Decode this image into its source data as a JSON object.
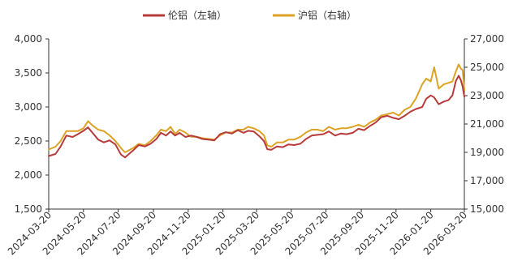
{
  "chart_data": {
    "type": "line",
    "title": "",
    "legend": {
      "placement": "top-center",
      "items": [
        "伦铝（左轴）",
        "沪铝（右轴）"
      ]
    },
    "x_ticks": [
      "2024-03-20",
      "2024-05-20",
      "2024-07-20",
      "2024-09-20",
      "2024-11-20",
      "2025-01-20",
      "2025-03-20",
      "2025-05-20",
      "2025-07-20",
      "2025-09-20",
      "2025-11-20",
      "2026-01-20",
      "2026-03-20"
    ],
    "y_left": {
      "range": [
        1500,
        4000
      ],
      "ticks": [
        1500,
        2000,
        2500,
        3000,
        3500,
        4000
      ],
      "tick_labels": [
        "1,500",
        "2,000",
        "2,500",
        "3,000",
        "3,500",
        "4,000"
      ]
    },
    "y_right": {
      "range": [
        15000,
        27000
      ],
      "ticks": [
        15000,
        17000,
        19000,
        21000,
        23000,
        25000,
        27000
      ],
      "tick_labels": [
        "15,000",
        "17,000",
        "19,000",
        "21,000",
        "23,000",
        "25,000",
        "27,000"
      ]
    },
    "grid": false,
    "colors": {
      "lme": "#b83b3b",
      "shfe": "#dca324"
    },
    "series": [
      {
        "name": "伦铝（左轴）",
        "axis": "left",
        "points": [
          [
            "2024-03-20",
            2280
          ],
          [
            "2024-04-01",
            2310
          ],
          [
            "2024-04-10",
            2420
          ],
          [
            "2024-04-20",
            2580
          ],
          [
            "2024-05-01",
            2560
          ],
          [
            "2024-05-10",
            2600
          ],
          [
            "2024-05-20",
            2650
          ],
          [
            "2024-05-28",
            2700
          ],
          [
            "2024-06-05",
            2620
          ],
          [
            "2024-06-15",
            2520
          ],
          [
            "2024-06-25",
            2480
          ],
          [
            "2024-07-05",
            2510
          ],
          [
            "2024-07-15",
            2450
          ],
          [
            "2024-07-25",
            2300
          ],
          [
            "2024-08-01",
            2260
          ],
          [
            "2024-08-08",
            2310
          ],
          [
            "2024-08-15",
            2360
          ],
          [
            "2024-08-25",
            2440
          ],
          [
            "2024-09-05",
            2420
          ],
          [
            "2024-09-15",
            2460
          ],
          [
            "2024-09-25",
            2530
          ],
          [
            "2024-10-03",
            2620
          ],
          [
            "2024-10-12",
            2580
          ],
          [
            "2024-10-20",
            2640
          ],
          [
            "2024-10-28",
            2580
          ],
          [
            "2024-11-05",
            2620
          ],
          [
            "2024-11-15",
            2560
          ],
          [
            "2024-11-25",
            2580
          ],
          [
            "2024-12-05",
            2560
          ],
          [
            "2024-12-15",
            2530
          ],
          [
            "2024-12-25",
            2520
          ],
          [
            "2025-01-05",
            2510
          ],
          [
            "2025-01-15",
            2600
          ],
          [
            "2025-01-25",
            2630
          ],
          [
            "2025-02-05",
            2610
          ],
          [
            "2025-02-15",
            2660
          ],
          [
            "2025-02-25",
            2620
          ],
          [
            "2025-03-05",
            2650
          ],
          [
            "2025-03-15",
            2640
          ],
          [
            "2025-03-25",
            2570
          ],
          [
            "2025-04-02",
            2500
          ],
          [
            "2025-04-08",
            2380
          ],
          [
            "2025-04-15",
            2370
          ],
          [
            "2025-04-25",
            2420
          ],
          [
            "2025-05-05",
            2410
          ],
          [
            "2025-05-15",
            2450
          ],
          [
            "2025-05-25",
            2440
          ],
          [
            "2025-06-05",
            2460
          ],
          [
            "2025-06-15",
            2530
          ],
          [
            "2025-06-25",
            2580
          ],
          [
            "2025-07-05",
            2590
          ],
          [
            "2025-07-15",
            2600
          ],
          [
            "2025-07-25",
            2640
          ],
          [
            "2025-08-05",
            2580
          ],
          [
            "2025-08-15",
            2610
          ],
          [
            "2025-08-25",
            2600
          ],
          [
            "2025-09-05",
            2620
          ],
          [
            "2025-09-15",
            2680
          ],
          [
            "2025-09-25",
            2660
          ],
          [
            "2025-10-05",
            2720
          ],
          [
            "2025-10-15",
            2770
          ],
          [
            "2025-10-25",
            2850
          ],
          [
            "2025-11-05",
            2870
          ],
          [
            "2025-11-15",
            2840
          ],
          [
            "2025-11-25",
            2820
          ],
          [
            "2025-12-05",
            2870
          ],
          [
            "2025-12-15",
            2930
          ],
          [
            "2025-12-25",
            2970
          ],
          [
            "2026-01-05",
            3000
          ],
          [
            "2026-01-12",
            3120
          ],
          [
            "2026-01-20",
            3170
          ],
          [
            "2026-01-26",
            3140
          ],
          [
            "2026-02-03",
            3040
          ],
          [
            "2026-02-12",
            3080
          ],
          [
            "2026-02-20",
            3100
          ],
          [
            "2026-02-27",
            3170
          ],
          [
            "2026-03-05",
            3380
          ],
          [
            "2026-03-10",
            3460
          ],
          [
            "2026-03-14",
            3390
          ],
          [
            "2026-03-17",
            3300
          ],
          [
            "2026-03-20",
            3150
          ]
        ]
      },
      {
        "name": "沪铝（右轴）",
        "axis": "right",
        "points": [
          [
            "2024-03-20",
            19200
          ],
          [
            "2024-04-01",
            19400
          ],
          [
            "2024-04-10",
            19800
          ],
          [
            "2024-04-20",
            20500
          ],
          [
            "2024-05-01",
            20500
          ],
          [
            "2024-05-10",
            20500
          ],
          [
            "2024-05-20",
            20700
          ],
          [
            "2024-05-28",
            21200
          ],
          [
            "2024-06-05",
            20900
          ],
          [
            "2024-06-15",
            20600
          ],
          [
            "2024-06-25",
            20500
          ],
          [
            "2024-07-05",
            20200
          ],
          [
            "2024-07-15",
            19800
          ],
          [
            "2024-07-25",
            19300
          ],
          [
            "2024-08-01",
            19000
          ],
          [
            "2024-08-08",
            19150
          ],
          [
            "2024-08-15",
            19300
          ],
          [
            "2024-08-25",
            19600
          ],
          [
            "2024-09-05",
            19500
          ],
          [
            "2024-09-15",
            19800
          ],
          [
            "2024-09-25",
            20200
          ],
          [
            "2024-10-03",
            20600
          ],
          [
            "2024-10-12",
            20500
          ],
          [
            "2024-10-20",
            20800
          ],
          [
            "2024-10-28",
            20300
          ],
          [
            "2024-11-05",
            20600
          ],
          [
            "2024-11-15",
            20400
          ],
          [
            "2024-11-25",
            20100
          ],
          [
            "2024-12-05",
            20100
          ],
          [
            "2024-12-15",
            20000
          ],
          [
            "2024-12-25",
            19950
          ],
          [
            "2025-01-05",
            19900
          ],
          [
            "2025-01-15",
            20200
          ],
          [
            "2025-01-25",
            20400
          ],
          [
            "2025-02-05",
            20400
          ],
          [
            "2025-02-15",
            20600
          ],
          [
            "2025-02-25",
            20600
          ],
          [
            "2025-03-05",
            20800
          ],
          [
            "2025-03-15",
            20700
          ],
          [
            "2025-03-25",
            20500
          ],
          [
            "2025-04-02",
            20200
          ],
          [
            "2025-04-08",
            19500
          ],
          [
            "2025-04-15",
            19400
          ],
          [
            "2025-04-25",
            19700
          ],
          [
            "2025-05-05",
            19700
          ],
          [
            "2025-05-15",
            19900
          ],
          [
            "2025-05-25",
            19900
          ],
          [
            "2025-06-05",
            20100
          ],
          [
            "2025-06-15",
            20400
          ],
          [
            "2025-06-25",
            20600
          ],
          [
            "2025-07-05",
            20600
          ],
          [
            "2025-07-15",
            20500
          ],
          [
            "2025-07-25",
            20800
          ],
          [
            "2025-08-05",
            20600
          ],
          [
            "2025-08-15",
            20700
          ],
          [
            "2025-08-25",
            20700
          ],
          [
            "2025-09-05",
            20800
          ],
          [
            "2025-09-15",
            20950
          ],
          [
            "2025-09-25",
            20800
          ],
          [
            "2025-10-05",
            21100
          ],
          [
            "2025-10-15",
            21300
          ],
          [
            "2025-10-25",
            21600
          ],
          [
            "2025-11-05",
            21700
          ],
          [
            "2025-11-15",
            21800
          ],
          [
            "2025-11-25",
            21600
          ],
          [
            "2025-12-05",
            22000
          ],
          [
            "2025-12-15",
            22200
          ],
          [
            "2025-12-25",
            22800
          ],
          [
            "2026-01-05",
            23800
          ],
          [
            "2026-01-12",
            24200
          ],
          [
            "2026-01-20",
            24000
          ],
          [
            "2026-01-26",
            25000
          ],
          [
            "2026-02-03",
            23500
          ],
          [
            "2026-02-12",
            23800
          ],
          [
            "2026-02-20",
            23900
          ],
          [
            "2026-02-27",
            24000
          ],
          [
            "2026-03-05",
            24700
          ],
          [
            "2026-03-10",
            25200
          ],
          [
            "2026-03-14",
            24900
          ],
          [
            "2026-03-17",
            24800
          ],
          [
            "2026-03-20",
            23400
          ]
        ]
      }
    ]
  }
}
